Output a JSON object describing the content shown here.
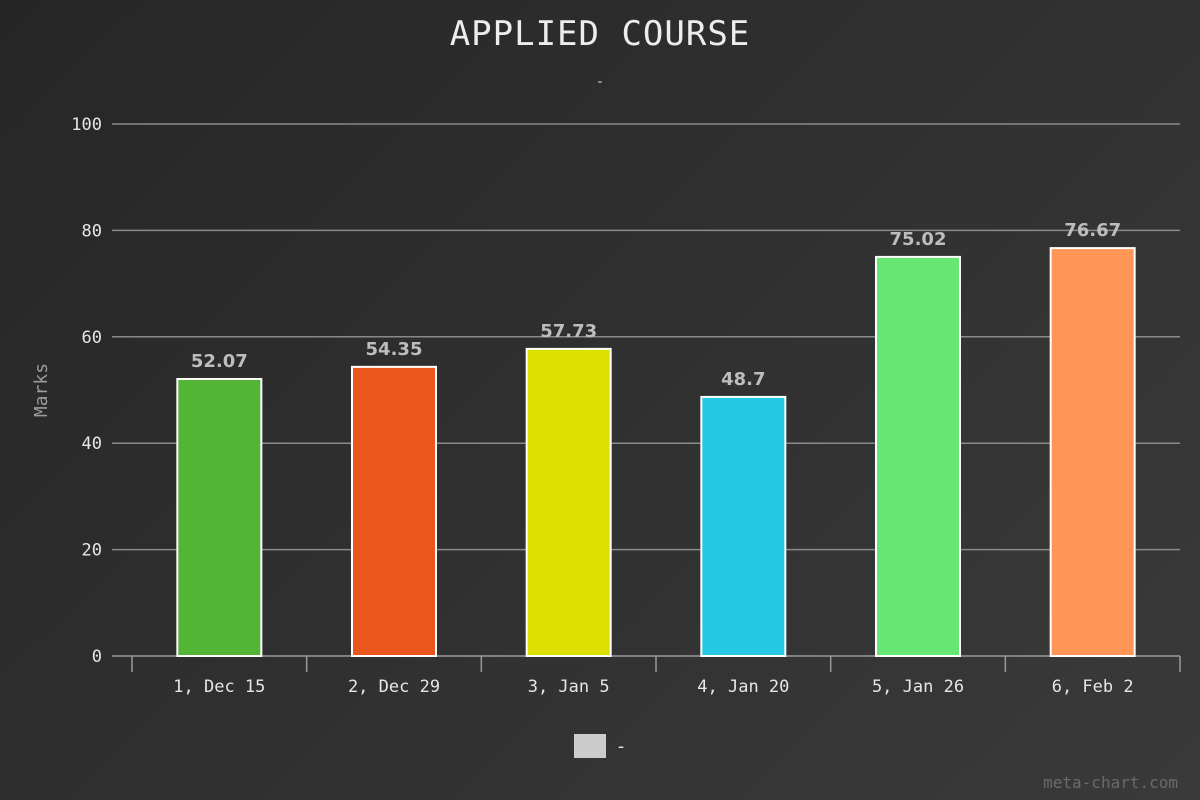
{
  "chart_data": {
    "type": "bar",
    "title": "APPLIED COURSE",
    "subtitle": "-",
    "xlabel": "",
    "ylabel": "Marks",
    "ylim": [
      0,
      100
    ],
    "yticks": [
      0,
      20,
      40,
      60,
      80,
      100
    ],
    "grid": true,
    "legend_position": "bottom-center",
    "categories": [
      "1, Dec 15",
      "2, Dec 29",
      "3, Jan 5",
      "4, Jan 20",
      "5, Jan 26",
      "6, Feb 2"
    ],
    "series": [
      {
        "name": "-",
        "values": [
          52.07,
          54.35,
          57.73,
          48.7,
          75.02,
          76.67
        ],
        "value_labels": [
          "52.07",
          "54.35",
          "57.73",
          "48.7",
          "75.02",
          "76.67"
        ],
        "colors": [
          "#52b535",
          "#ea561c",
          "#dde000",
          "#26c9e3",
          "#66e673",
          "#ff9657"
        ]
      }
    ]
  },
  "watermark": "meta-chart.com"
}
